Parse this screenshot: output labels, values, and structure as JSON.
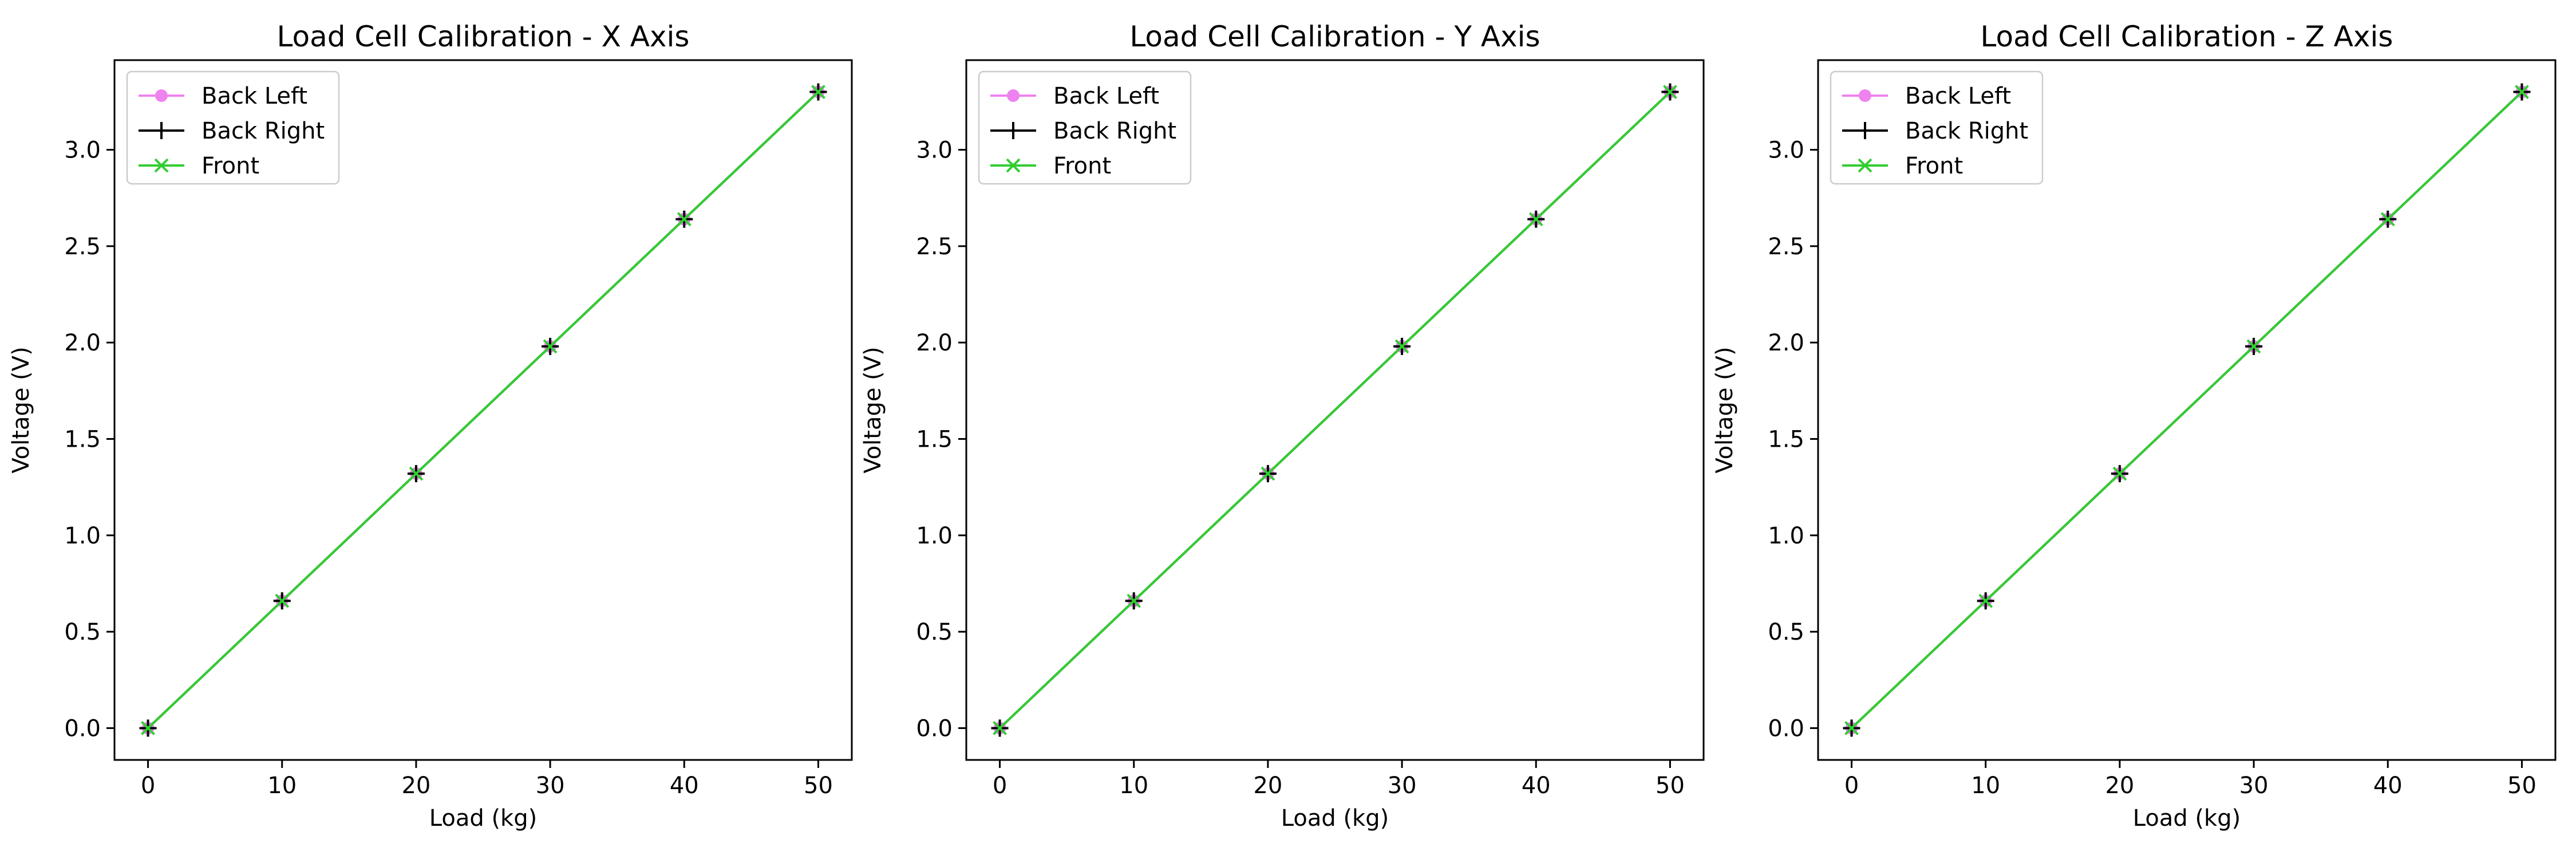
{
  "colors": {
    "back_left": "#ee82ee",
    "back_right": "#000000",
    "front": "#32cd32",
    "axes": "#000000",
    "background": "#ffffff"
  },
  "chart_data": [
    {
      "type": "line",
      "title": "Load Cell Calibration - X Axis",
      "xlabel": "Load (kg)",
      "ylabel": "Voltage (V)",
      "x": [
        0,
        10,
        20,
        30,
        40,
        50
      ],
      "xlim": [
        -2.5,
        52.5
      ],
      "ylim": [
        -0.165,
        3.465
      ],
      "xticks": [
        0,
        10,
        20,
        30,
        40,
        50
      ],
      "xtick_labels": [
        "0",
        "10",
        "20",
        "30",
        "40",
        "50"
      ],
      "yticks": [
        0,
        0.5,
        1.0,
        1.5,
        2.0,
        2.5,
        3.0
      ],
      "ytick_labels": [
        "0.0",
        "0.5",
        "1.0",
        "1.5",
        "2.0",
        "2.5",
        "3.0"
      ],
      "grid": false,
      "legend_position": "upper left",
      "series": [
        {
          "name": "Back Left",
          "marker": "circle",
          "color": "#ee82ee",
          "values": [
            0.0,
            0.66,
            1.32,
            1.98,
            2.64,
            3.3
          ]
        },
        {
          "name": "Back Right",
          "marker": "plus",
          "color": "#000000",
          "values": [
            0.0,
            0.66,
            1.32,
            1.98,
            2.64,
            3.3
          ]
        },
        {
          "name": "Front",
          "marker": "x",
          "color": "#32cd32",
          "values": [
            0.0,
            0.66,
            1.32,
            1.98,
            2.64,
            3.3
          ]
        }
      ]
    },
    {
      "type": "line",
      "title": "Load Cell Calibration - Y Axis",
      "xlabel": "Load (kg)",
      "ylabel": "Voltage (V)",
      "x": [
        0,
        10,
        20,
        30,
        40,
        50
      ],
      "xlim": [
        -2.5,
        52.5
      ],
      "ylim": [
        -0.165,
        3.465
      ],
      "xticks": [
        0,
        10,
        20,
        30,
        40,
        50
      ],
      "xtick_labels": [
        "0",
        "10",
        "20",
        "30",
        "40",
        "50"
      ],
      "yticks": [
        0,
        0.5,
        1.0,
        1.5,
        2.0,
        2.5,
        3.0
      ],
      "ytick_labels": [
        "0.0",
        "0.5",
        "1.0",
        "1.5",
        "2.0",
        "2.5",
        "3.0"
      ],
      "grid": false,
      "legend_position": "upper left",
      "series": [
        {
          "name": "Back Left",
          "marker": "circle",
          "color": "#ee82ee",
          "values": [
            0.0,
            0.66,
            1.32,
            1.98,
            2.64,
            3.3
          ]
        },
        {
          "name": "Back Right",
          "marker": "plus",
          "color": "#000000",
          "values": [
            0.0,
            0.66,
            1.32,
            1.98,
            2.64,
            3.3
          ]
        },
        {
          "name": "Front",
          "marker": "x",
          "color": "#32cd32",
          "values": [
            0.0,
            0.66,
            1.32,
            1.98,
            2.64,
            3.3
          ]
        }
      ]
    },
    {
      "type": "line",
      "title": "Load Cell Calibration - Z Axis",
      "xlabel": "Load (kg)",
      "ylabel": "Voltage (V)",
      "x": [
        0,
        10,
        20,
        30,
        40,
        50
      ],
      "xlim": [
        -2.5,
        52.5
      ],
      "ylim": [
        -0.165,
        3.465
      ],
      "xticks": [
        0,
        10,
        20,
        30,
        40,
        50
      ],
      "xtick_labels": [
        "0",
        "10",
        "20",
        "30",
        "40",
        "50"
      ],
      "yticks": [
        0,
        0.5,
        1.0,
        1.5,
        2.0,
        2.5,
        3.0
      ],
      "ytick_labels": [
        "0.0",
        "0.5",
        "1.0",
        "1.5",
        "2.0",
        "2.5",
        "3.0"
      ],
      "grid": false,
      "legend_position": "upper left",
      "series": [
        {
          "name": "Back Left",
          "marker": "circle",
          "color": "#ee82ee",
          "values": [
            0.0,
            0.66,
            1.32,
            1.98,
            2.64,
            3.3
          ]
        },
        {
          "name": "Back Right",
          "marker": "plus",
          "color": "#000000",
          "values": [
            0.0,
            0.66,
            1.32,
            1.98,
            2.64,
            3.3
          ]
        },
        {
          "name": "Front",
          "marker": "x",
          "color": "#32cd32",
          "values": [
            0.0,
            0.66,
            1.32,
            1.98,
            2.64,
            3.3
          ]
        }
      ]
    }
  ]
}
